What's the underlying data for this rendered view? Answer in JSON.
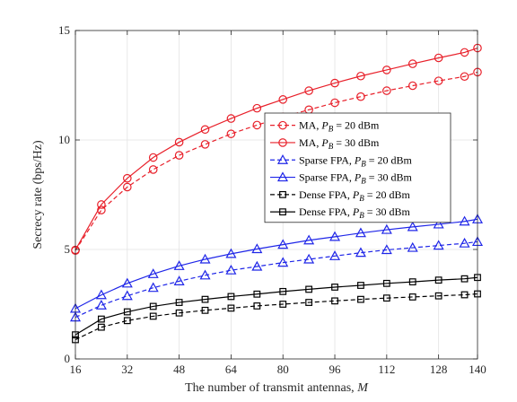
{
  "chart_data": {
    "type": "line",
    "xlabel": "The number of transmit antennas, M",
    "ylabel": "Secrecy rate (bps/Hz)",
    "xlim": [
      16,
      140
    ],
    "ylim": [
      0,
      15
    ],
    "xticks": [
      16,
      32,
      48,
      64,
      80,
      96,
      112,
      128,
      140
    ],
    "yticks": [
      0,
      5,
      10,
      15
    ],
    "grid": true,
    "legend_position": "center-right",
    "x": [
      16,
      24,
      32,
      40,
      48,
      56,
      64,
      72,
      80,
      88,
      96,
      104,
      112,
      120,
      128,
      136,
      140
    ],
    "series": [
      {
        "name": "MA, P_B = 20 dBm",
        "label_main": "MA, ",
        "label_var": "P",
        "label_sub": "B",
        "label_rest": " = 20 dBm",
        "color": "#e8202a",
        "dash": "dashed",
        "marker": "circle",
        "values": [
          4.95,
          6.8,
          7.85,
          8.65,
          9.3,
          9.8,
          10.28,
          10.68,
          11.05,
          11.38,
          11.7,
          11.98,
          12.25,
          12.48,
          12.7,
          12.9,
          13.1
        ]
      },
      {
        "name": "MA, P_B = 30 dBm",
        "label_main": "MA, ",
        "label_var": "P",
        "label_sub": "B",
        "label_rest": " = 30 dBm",
        "color": "#e8202a",
        "dash": "solid",
        "marker": "circle",
        "values": [
          4.98,
          7.05,
          8.25,
          9.2,
          9.9,
          10.48,
          10.98,
          11.45,
          11.85,
          12.25,
          12.6,
          12.92,
          13.2,
          13.48,
          13.75,
          14.0,
          14.2
        ]
      },
      {
        "name": "Sparse FPA, P_B = 20 dBm",
        "label_main": "Sparse FPA, ",
        "label_var": "P",
        "label_sub": "B",
        "label_rest": " = 20 dBm",
        "color": "#1f26e8",
        "dash": "dashed",
        "marker": "triangle",
        "values": [
          1.9,
          2.45,
          2.88,
          3.25,
          3.55,
          3.82,
          4.05,
          4.22,
          4.4,
          4.55,
          4.7,
          4.85,
          4.98,
          5.08,
          5.18,
          5.28,
          5.35
        ]
      },
      {
        "name": "Sparse FPA, P_B = 30 dBm",
        "label_main": "Sparse FPA, ",
        "label_var": "P",
        "label_sub": "B",
        "label_rest": " = 30 dBm",
        "color": "#1f26e8",
        "dash": "solid",
        "marker": "triangle",
        "values": [
          2.3,
          2.92,
          3.45,
          3.88,
          4.25,
          4.55,
          4.8,
          5.02,
          5.22,
          5.42,
          5.58,
          5.75,
          5.9,
          6.03,
          6.15,
          6.28,
          6.38
        ]
      },
      {
        "name": "Dense FPA, P_B = 20 dBm",
        "label_main": "Dense FPA, ",
        "label_var": "P",
        "label_sub": "B",
        "label_rest": " = 20 dBm",
        "color": "#000000",
        "dash": "dashed",
        "marker": "square",
        "values": [
          0.88,
          1.45,
          1.75,
          1.95,
          2.1,
          2.22,
          2.32,
          2.42,
          2.5,
          2.58,
          2.65,
          2.72,
          2.78,
          2.83,
          2.88,
          2.93,
          2.97
        ]
      },
      {
        "name": "Dense FPA, P_B = 30 dBm",
        "label_main": "Dense FPA, ",
        "label_var": "P",
        "label_sub": "B",
        "label_rest": " = 30 dBm",
        "color": "#000000",
        "dash": "solid",
        "marker": "square",
        "values": [
          1.1,
          1.82,
          2.15,
          2.4,
          2.58,
          2.72,
          2.85,
          2.96,
          3.08,
          3.18,
          3.28,
          3.36,
          3.45,
          3.52,
          3.6,
          3.66,
          3.72
        ]
      }
    ]
  }
}
